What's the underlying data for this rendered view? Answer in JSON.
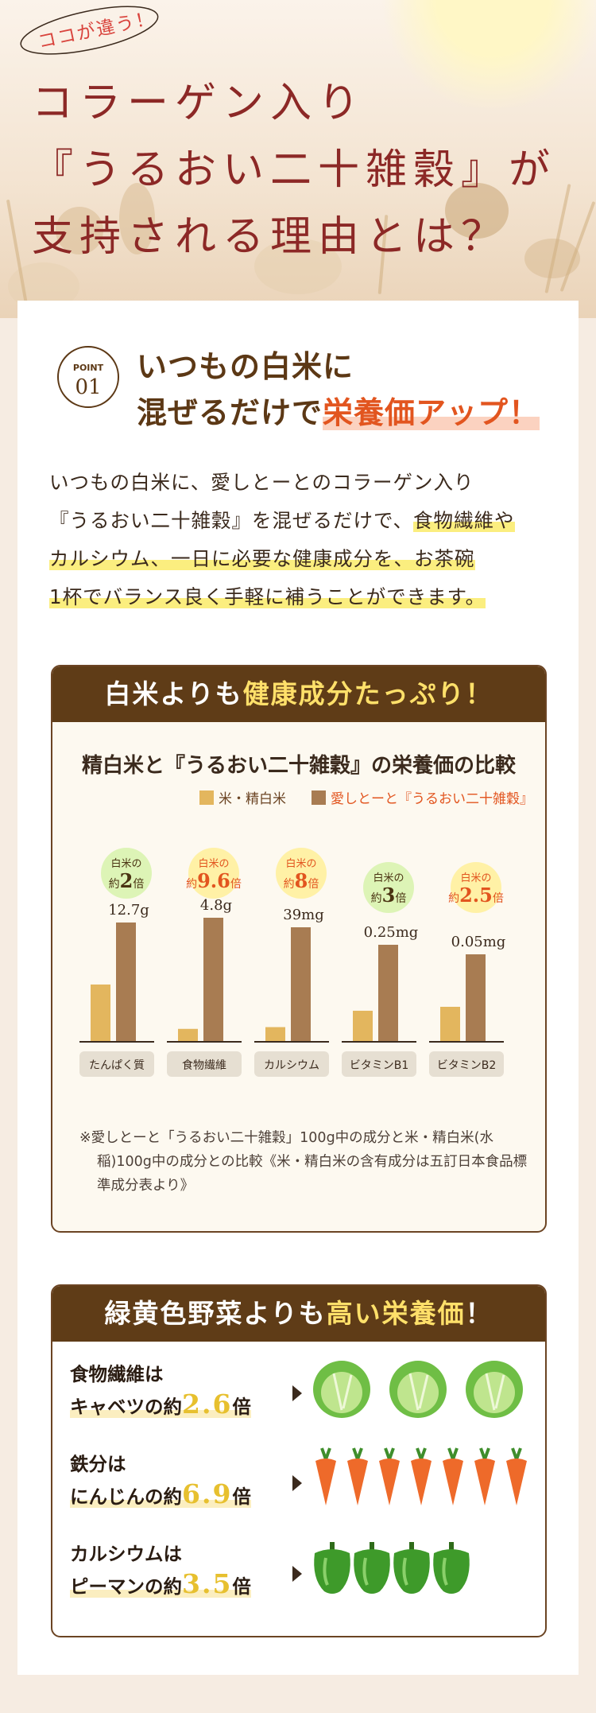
{
  "hero": {
    "badge": "ココが違う！",
    "headline": [
      "コラーゲン入り",
      "『うるおい二十雑穀』が",
      "支持される理由とは？"
    ]
  },
  "point1": {
    "circle_small": "POINT",
    "circle_num": "01",
    "title_line1": "いつもの白米に",
    "title_line2_prefix": "混ぜるだけで",
    "title_line2_highlight": "栄養価アップ！",
    "body": {
      "p1": "いつもの白米に、愛しとーとのコラーゲン入り",
      "p2a": "『うるおい二十雑穀』を混ぜるだけで、",
      "p2b": "食物繊維や",
      "p3": "カルシウム、一日に必要な健康成分を、お茶碗",
      "p4": "1杯でバランス良く手軽に補うことができます。"
    }
  },
  "box1": {
    "header_white": "白米よりも",
    "header_yellow": "健康成分たっぷり！",
    "chart_title": "精白米と『うるおい二十雑穀』の栄養価の比較",
    "legend_rice": "米・精白米",
    "legend_product": "愛しとーと『うるおい二十雑穀』",
    "note": "※愛しとーと「うるおい二十雑穀」100g中の成分と米・精白米(水稲)100g中の成分との比較《米・精白米の含有成分は五訂日本食品標準成分表より》"
  },
  "chart_data": {
    "type": "bar",
    "title": "精白米と『うるおい二十雑穀』の栄養価の比較",
    "categories": [
      "たんぱく質",
      "食物繊維",
      "カルシウム",
      "ビタミンB1",
      "ビタミンB2"
    ],
    "series": [
      {
        "name": "米・精白米",
        "color": "#e3b65e",
        "values": [
          6.1,
          0.5,
          5,
          0.08,
          0.02
        ]
      },
      {
        "name": "愛しとーと『うるおい二十雑穀』",
        "color": "#a87c52",
        "values": [
          12.7,
          4.8,
          39,
          0.25,
          0.05
        ]
      }
    ],
    "value_labels": [
      "12.7g",
      "4.8g",
      "39mg",
      "0.25mg",
      "0.05mg"
    ],
    "ratio_badges": [
      {
        "top": "白米の",
        "prefix": "約",
        "num": "2",
        "suffix": "倍",
        "color": "#ddf4b6",
        "numcolor": "#4a3312"
      },
      {
        "top": "白米の",
        "prefix": "約",
        "num": "9.6",
        "suffix": "倍",
        "color": "#fff1a6",
        "numcolor": "#e2551f"
      },
      {
        "top": "白米の",
        "prefix": "約",
        "num": "8",
        "suffix": "倍",
        "color": "#fff1a6",
        "numcolor": "#e2551f"
      },
      {
        "top": "白米の",
        "prefix": "約",
        "num": "3",
        "suffix": "倍",
        "color": "#ddf4b6",
        "numcolor": "#4a3312"
      },
      {
        "top": "白米の",
        "prefix": "約",
        "num": "2.5",
        "suffix": "倍",
        "color": "#fff1a6",
        "numcolor": "#e2551f"
      }
    ]
  },
  "box2": {
    "header_white1": "緑黄色野菜よりも",
    "header_yellow": "高い栄養価",
    "header_white2": "！",
    "rows": [
      {
        "line1": "食物繊維は",
        "line2": "キャベツの約",
        "num": "2.6",
        "unit": "倍",
        "veg": "cabbage-icon",
        "count": 3
      },
      {
        "line1": "鉄分は",
        "line2": "にんじんの約",
        "num": "6.9",
        "unit": "倍",
        "veg": "carrot-icon",
        "count": 7
      },
      {
        "line1": "カルシウムは",
        "line2": "ピーマンの約",
        "num": "3.5",
        "unit": "倍",
        "veg": "pepper-icon",
        "count": 4
      }
    ]
  }
}
